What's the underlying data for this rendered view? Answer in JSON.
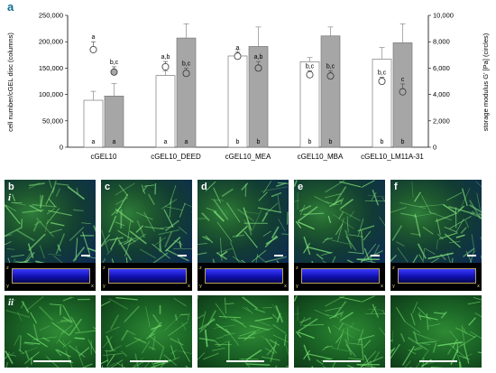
{
  "panel_a_label": "a",
  "chart_data": {
    "type": "bar",
    "categories": [
      "cGEL10",
      "cGEL10_DEED",
      "cGEL10_MEA",
      "cGEL10_MBA",
      "cGEL10_LM11A-31"
    ],
    "ylabel": "cell number/cGEL disc (columns)",
    "y2label": "storage modulus G' [Pa] (circles)",
    "ylim": [
      0,
      250000
    ],
    "y2lim": [
      0,
      10000
    ],
    "yticks": [
      "0",
      "50,000",
      "100,000",
      "150,000",
      "200,000",
      "250,000"
    ],
    "y2ticks": [
      "0",
      "2,000",
      "4,000",
      "6,000",
      "8,000",
      "10,000"
    ],
    "grid": false,
    "series": [
      {
        "fill": "white",
        "color": "#ffffff",
        "values": [
          89000,
          136000,
          173000,
          162000,
          167000
        ],
        "errors": [
          17000,
          9000,
          12000,
          8000,
          22000
        ],
        "base_letters": [
          "a",
          "a",
          "b",
          "b",
          "b"
        ]
      },
      {
        "fill": "gray",
        "color": "#a6a6a6",
        "values": [
          97000,
          207000,
          191000,
          211000,
          198000
        ],
        "errors": [
          24000,
          27000,
          37000,
          17000,
          36000
        ],
        "base_letters": [
          "a",
          "a",
          "b",
          "b",
          "b"
        ]
      }
    ],
    "circles": [
      {
        "fill": "open",
        "values": [
          7400,
          6100,
          6900,
          5500,
          5000
        ],
        "errors": [
          600,
          400,
          300,
          300,
          300
        ],
        "letters": [
          "a",
          "a,b",
          "a",
          "b,c",
          "b,c"
        ]
      },
      {
        "fill": "gray",
        "values": [
          5700,
          5600,
          6000,
          5400,
          4200
        ],
        "errors": [
          400,
          400,
          500,
          400,
          600
        ],
        "letters": [
          "b,c",
          "b,c",
          "a,b",
          "b,c",
          "c"
        ]
      }
    ]
  },
  "micrographs": {
    "tiles": [
      "b",
      "c",
      "d",
      "e",
      "f"
    ],
    "row_labels": [
      "i",
      "ii"
    ],
    "axis_tags": [
      "z",
      "y",
      "x"
    ]
  }
}
